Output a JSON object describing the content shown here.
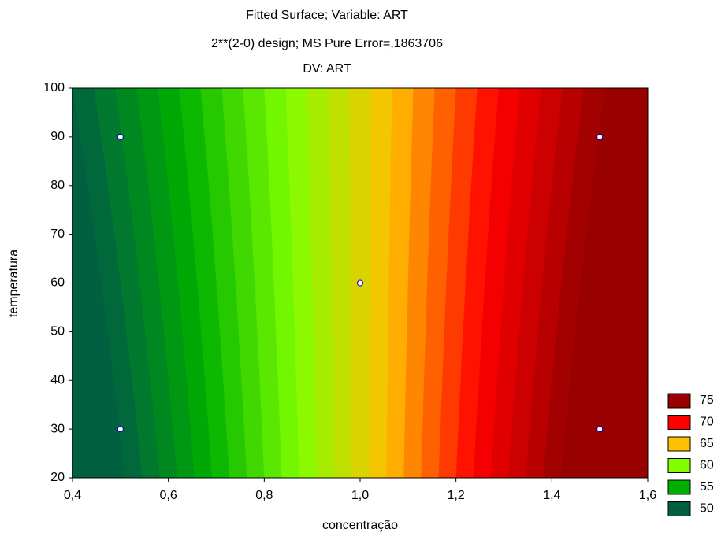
{
  "chart_data": {
    "type": "contour",
    "title": "Fitted Surface; Variable: ART",
    "subtitle": "2**(2-0) design; MS Pure Error=,1863706",
    "dv_label": "DV: ART",
    "x_label": "concentração",
    "y_label": "temperatura",
    "xlim": [
      0.4,
      1.6
    ],
    "ylim": [
      20,
      100
    ],
    "xticks": [
      {
        "value": 0.4,
        "label": "0,4"
      },
      {
        "value": 0.6,
        "label": "0,6"
      },
      {
        "value": 0.8,
        "label": "0,8"
      },
      {
        "value": 1.0,
        "label": "1,0"
      },
      {
        "value": 1.2,
        "label": "1,2"
      },
      {
        "value": 1.4,
        "label": "1,4"
      },
      {
        "value": 1.6,
        "label": "1,6"
      }
    ],
    "yticks": [
      20,
      30,
      40,
      50,
      60,
      70,
      80,
      90,
      100
    ],
    "z": [
      [
        47,
        50
      ],
      [
        80,
        77
      ]
    ],
    "points": {
      "x": [
        0.5,
        0.5,
        1.0,
        1.5,
        1.5
      ],
      "y": [
        30,
        90,
        60,
        30,
        90
      ]
    },
    "levels": [
      {
        "value": 75,
        "color": "#990000"
      },
      {
        "value": 70,
        "color": "#ff0000"
      },
      {
        "value": 65,
        "color": "#ffc000"
      },
      {
        "value": 60,
        "color": "#80ff00"
      },
      {
        "value": 55,
        "color": "#00b000"
      },
      {
        "value": 50,
        "color": "#006040"
      }
    ]
  }
}
